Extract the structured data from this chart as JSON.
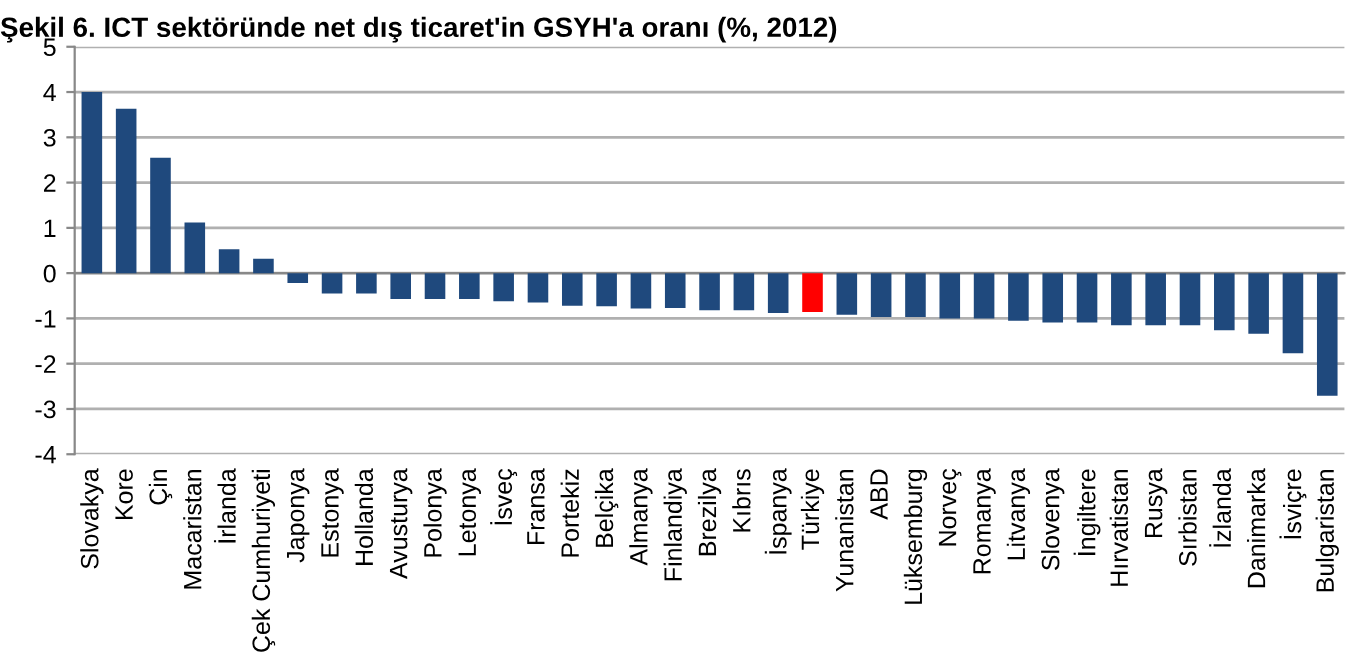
{
  "chart_data": {
    "type": "bar",
    "title": "Şekil 6. ICT sektöründe net dış ticaret'in GSYH'a oranı (%, 2012)",
    "categories": [
      "Slovakya",
      "Kore",
      "Çin",
      "Macaristan",
      "İrlanda",
      "Çek Cumhuriyeti",
      "Japonya",
      "Estonya",
      "Hollanda",
      "Avusturya",
      "Polonya",
      "Letonya",
      "İsveç",
      "Fransa",
      "Portekiz",
      "Belçika",
      "Almanya",
      "Finlandiya",
      "Brezilya",
      "Kıbrıs",
      "İspanya",
      "Türkiye",
      "Yunanistan",
      "ABD",
      "Lüksemburg",
      "Norveç",
      "Romanya",
      "Litvanya",
      "Slovenya",
      "İngiltere",
      "Hırvatistan",
      "Rusya",
      "Sırbistan",
      "İzlanda",
      "Danimarka",
      "İsviçre",
      "Bulgaristan"
    ],
    "values": [
      4.0,
      3.63,
      2.55,
      1.12,
      0.53,
      0.32,
      -0.22,
      -0.45,
      -0.45,
      -0.57,
      -0.57,
      -0.57,
      -0.62,
      -0.65,
      -0.72,
      -0.73,
      -0.78,
      -0.77,
      -0.82,
      -0.82,
      -0.88,
      -0.86,
      -0.92,
      -0.97,
      -0.97,
      -1.0,
      -1.0,
      -1.05,
      -1.09,
      -1.09,
      -1.15,
      -1.15,
      -1.15,
      -1.26,
      -1.34,
      -1.77,
      -2.71
    ],
    "colors": [
      "#1f497d",
      "#1f497d",
      "#1f497d",
      "#1f497d",
      "#1f497d",
      "#1f497d",
      "#1f497d",
      "#1f497d",
      "#1f497d",
      "#1f497d",
      "#1f497d",
      "#1f497d",
      "#1f497d",
      "#1f497d",
      "#1f497d",
      "#1f497d",
      "#1f497d",
      "#1f497d",
      "#1f497d",
      "#1f497d",
      "#1f497d",
      "#ff0000",
      "#1f497d",
      "#1f497d",
      "#1f497d",
      "#1f497d",
      "#1f497d",
      "#1f497d",
      "#1f497d",
      "#1f497d",
      "#1f497d",
      "#1f497d",
      "#1f497d",
      "#1f497d",
      "#1f497d",
      "#1f497d",
      "#1f497d"
    ],
    "ylim": [
      -4,
      5
    ],
    "yticks": [
      -4,
      -3,
      -2,
      -1,
      0,
      1,
      2,
      3,
      4,
      5
    ],
    "grid": "y",
    "legend": false
  }
}
